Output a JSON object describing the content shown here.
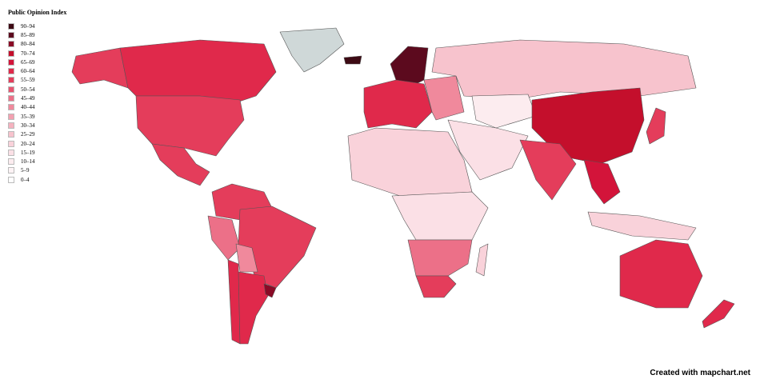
{
  "legend": {
    "title": "Public Opinion Index",
    "items": [
      {
        "label": "90–94",
        "color": "#3d0a14"
      },
      {
        "label": "85–89",
        "color": "#5c0a1e"
      },
      {
        "label": "80–84",
        "color": "#8a0a26"
      },
      {
        "label": "70–74",
        "color": "#c40f2c"
      },
      {
        "label": "65–69",
        "color": "#d3143a"
      },
      {
        "label": "60–64",
        "color": "#e0294b"
      },
      {
        "label": "55–59",
        "color": "#e43d5b"
      },
      {
        "label": "50–54",
        "color": "#e85470"
      },
      {
        "label": "45–49",
        "color": "#ec7088"
      },
      {
        "label": "40–44",
        "color": "#f0899c"
      },
      {
        "label": "35–39",
        "color": "#f3a0b0"
      },
      {
        "label": "30–34",
        "color": "#f5b2bf"
      },
      {
        "label": "25–29",
        "color": "#f7c3cd"
      },
      {
        "label": "20–24",
        "color": "#f9d2da"
      },
      {
        "label": "15–19",
        "color": "#fbe0e6"
      },
      {
        "label": "10–14",
        "color": "#fcecef"
      },
      {
        "label": "5–9",
        "color": "#fdf3f5"
      },
      {
        "label": "0–4",
        "color": "#ffffff"
      }
    ]
  },
  "no_data_color": "#cfd8d8",
  "regions": {
    "alaska": "55–59",
    "canada": "60–64",
    "usa": "55–59",
    "mexico": "55–59",
    "greenland": "none",
    "colombia-venezuela": "55–59",
    "peru": "45–49",
    "brazil": "55–59",
    "bolivia": "40–44",
    "argentina": "60–64",
    "chile": "60–64",
    "uruguay": "80–84",
    "scandinavia": "85–89",
    "iceland": "90–94",
    "western-europe": "60–64",
    "eastern-europe": "40–44",
    "russia": "25–29",
    "middle-east": "15–19",
    "north-africa": "20–24",
    "central-africa": "15–19",
    "southern-africa": "45–49",
    "south-africa": "55–59",
    "china": "70–74",
    "india": "55–59",
    "southeast-asia": "65–69",
    "japan": "55–59",
    "indonesia": "20–24",
    "australia": "60–64",
    "new-zealand": "60–64",
    "central-asia": "10–14",
    "madagascar": "20–24"
  },
  "credit": "Created with mapchart.net"
}
